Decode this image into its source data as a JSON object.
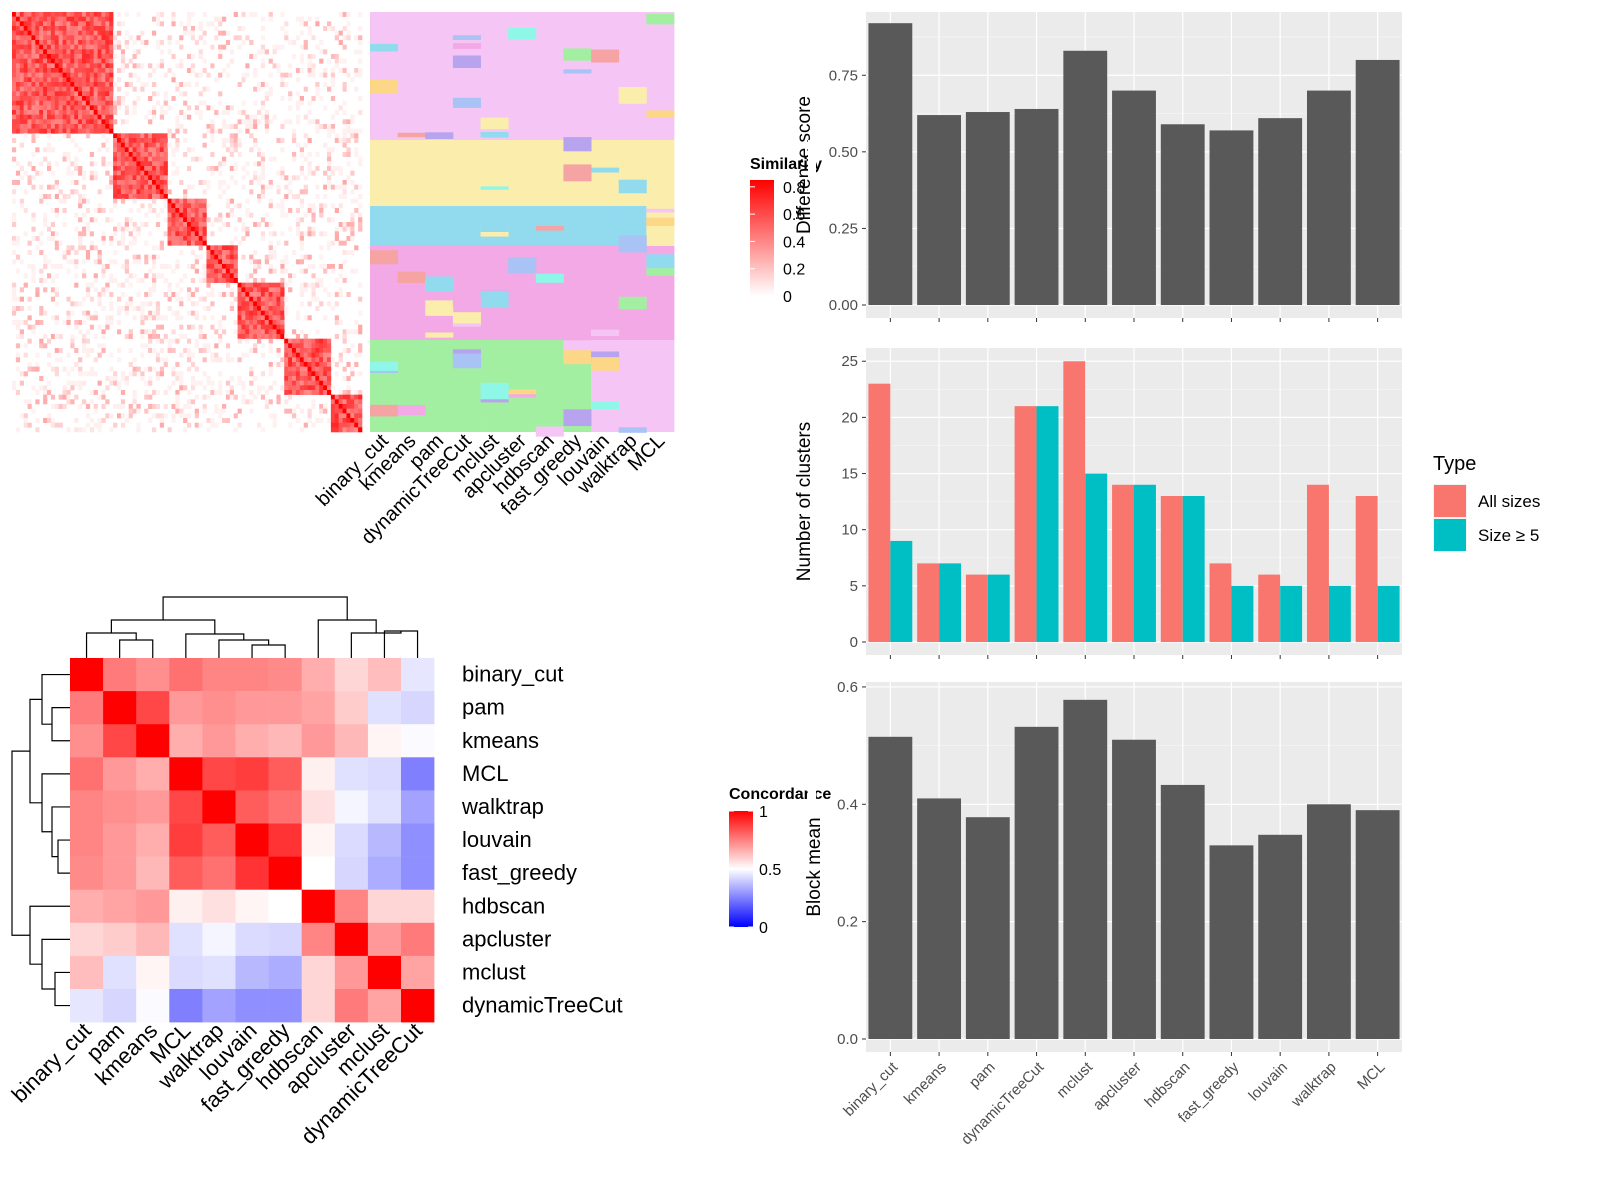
{
  "methods": [
    "binary_cut",
    "kmeans",
    "pam",
    "dynamicTreeCut",
    "mclust",
    "apcluster",
    "hdbscan",
    "fast_greedy",
    "louvain",
    "walktrap",
    "MCL"
  ],
  "similarity_heatmap": {
    "legend_title": "Similarity",
    "legend_ticks": [
      "0.8",
      "0.6",
      "0.4",
      "0.2",
      "0"
    ],
    "colors": {
      "high": "#ff0000",
      "low": "#ffffff"
    }
  },
  "concordance_heatmap": {
    "legend_title": "Concordance",
    "legend_ticks": [
      "1",
      "0.5",
      "0"
    ],
    "order": [
      "binary_cut",
      "pam",
      "kmeans",
      "MCL",
      "walktrap",
      "louvain",
      "fast_greedy",
      "hdbscan",
      "apcluster",
      "mclust",
      "dynamicTreeCut"
    ],
    "matrix": [
      [
        1.0,
        0.76,
        0.72,
        0.78,
        0.74,
        0.74,
        0.73,
        0.66,
        0.58,
        0.63,
        0.45
      ],
      [
        0.76,
        1.0,
        0.86,
        0.7,
        0.72,
        0.7,
        0.7,
        0.68,
        0.6,
        0.44,
        0.42
      ],
      [
        0.72,
        0.86,
        1.0,
        0.66,
        0.7,
        0.66,
        0.64,
        0.7,
        0.64,
        0.52,
        0.49
      ],
      [
        0.78,
        0.7,
        0.66,
        1.0,
        0.86,
        0.88,
        0.82,
        0.53,
        0.44,
        0.43,
        0.25
      ],
      [
        0.74,
        0.72,
        0.7,
        0.86,
        1.0,
        0.82,
        0.78,
        0.56,
        0.48,
        0.44,
        0.32
      ],
      [
        0.74,
        0.7,
        0.66,
        0.88,
        0.82,
        1.0,
        0.9,
        0.52,
        0.43,
        0.36,
        0.28
      ],
      [
        0.73,
        0.7,
        0.64,
        0.82,
        0.78,
        0.9,
        1.0,
        0.5,
        0.42,
        0.34,
        0.28
      ],
      [
        0.66,
        0.68,
        0.7,
        0.53,
        0.56,
        0.52,
        0.5,
        1.0,
        0.74,
        0.58,
        0.58
      ],
      [
        0.58,
        0.6,
        0.64,
        0.44,
        0.48,
        0.43,
        0.42,
        0.74,
        1.0,
        0.7,
        0.76
      ],
      [
        0.63,
        0.44,
        0.52,
        0.43,
        0.44,
        0.36,
        0.34,
        0.58,
        0.7,
        1.0,
        0.68
      ],
      [
        0.45,
        0.42,
        0.49,
        0.25,
        0.32,
        0.28,
        0.28,
        0.58,
        0.76,
        0.68,
        1.0
      ]
    ]
  },
  "chart_data": [
    {
      "type": "bar",
      "categories": [
        "binary_cut",
        "kmeans",
        "pam",
        "dynamicTreeCut",
        "mclust",
        "apcluster",
        "hdbscan",
        "fast_greedy",
        "louvain",
        "walktrap",
        "MCL"
      ],
      "values": [
        0.92,
        0.62,
        0.63,
        0.64,
        0.83,
        0.7,
        0.59,
        0.57,
        0.61,
        0.7,
        0.8
      ],
      "ylabel": "Difference score",
      "yticks": [
        "0.00",
        "0.25",
        "0.50",
        "0.75"
      ],
      "ylim": [
        0,
        0.95
      ]
    },
    {
      "type": "bar",
      "categories": [
        "binary_cut",
        "kmeans",
        "pam",
        "dynamicTreeCut",
        "mclust",
        "apcluster",
        "hdbscan",
        "fast_greedy",
        "louvain",
        "walktrap",
        "MCL"
      ],
      "series": [
        {
          "name": "All sizes",
          "values": [
            23,
            7,
            6,
            21,
            25,
            14,
            13,
            7,
            6,
            14,
            13
          ]
        },
        {
          "name": "Size ≥ 5",
          "values": [
            9,
            7,
            6,
            21,
            15,
            14,
            13,
            5,
            5,
            5,
            5
          ]
        }
      ],
      "ylabel": "Number of clusters",
      "yticks": [
        "0",
        "5",
        "10",
        "15",
        "20",
        "25"
      ],
      "ylim": [
        0,
        26
      ],
      "legend_title": "Type",
      "legend_placement": "right",
      "colors": {
        "All sizes": "#f8766d",
        "Size ≥ 5": "#00bfc4"
      }
    },
    {
      "type": "bar",
      "categories": [
        "binary_cut",
        "kmeans",
        "pam",
        "dynamicTreeCut",
        "mclust",
        "apcluster",
        "hdbscan",
        "fast_greedy",
        "louvain",
        "walktrap",
        "MCL"
      ],
      "values": [
        0.515,
        0.41,
        0.378,
        0.532,
        0.578,
        0.51,
        0.433,
        0.33,
        0.348,
        0.4,
        0.39
      ],
      "ylabel": "Block mean",
      "yticks": [
        "0.0",
        "0.2",
        "0.4",
        "0.6"
      ],
      "ylim": [
        0,
        0.605
      ]
    }
  ]
}
